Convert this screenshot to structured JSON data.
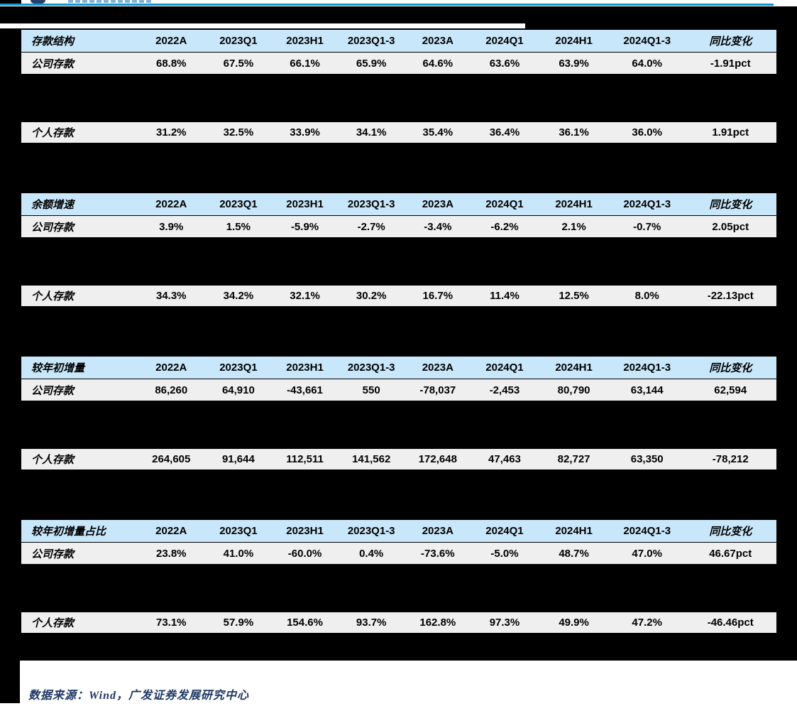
{
  "page": {
    "header": {
      "logo_name": "gf-securities-logo-fragment",
      "accent_rule_color": "#1493D1",
      "top_bar_color": "#000000"
    },
    "columns": [
      "2022A",
      "2023Q1",
      "2023H1",
      "2023Q1-3",
      "2023A",
      "2024Q1",
      "2024H1",
      "2024Q1-3",
      "同比变化"
    ],
    "tables": [
      {
        "title": "存款结构",
        "rows": [
          {
            "label": "公司存款",
            "values": [
              "68.8%",
              "67.5%",
              "66.1%",
              "65.9%",
              "64.6%",
              "63.6%",
              "63.9%",
              "64.0%",
              "-1.91pct"
            ]
          },
          {
            "label": "个人存款",
            "values": [
              "31.2%",
              "32.5%",
              "33.9%",
              "34.1%",
              "35.4%",
              "36.4%",
              "36.1%",
              "36.0%",
              "1.91pct"
            ]
          }
        ]
      },
      {
        "title": "余额增速",
        "rows": [
          {
            "label": "公司存款",
            "values": [
              "3.9%",
              "1.5%",
              "-5.9%",
              "-2.7%",
              "-3.4%",
              "-6.2%",
              "2.1%",
              "-0.7%",
              "2.05pct"
            ]
          },
          {
            "label": "个人存款",
            "values": [
              "34.3%",
              "34.2%",
              "32.1%",
              "30.2%",
              "16.7%",
              "11.4%",
              "12.5%",
              "8.0%",
              "-22.13pct"
            ]
          }
        ]
      },
      {
        "title": "较年初增量",
        "rows": [
          {
            "label": "公司存款",
            "values": [
              "86,260",
              "64,910",
              "-43,661",
              "550",
              "-78,037",
              "-2,453",
              "80,790",
              "63,144",
              "62,594"
            ]
          },
          {
            "label": "个人存款",
            "values": [
              "264,605",
              "91,644",
              "112,511",
              "141,562",
              "172,648",
              "47,463",
              "82,727",
              "63,350",
              "-78,212"
            ]
          }
        ]
      },
      {
        "title": "较年初增量占比",
        "rows": [
          {
            "label": "公司存款",
            "values": [
              "23.8%",
              "41.0%",
              "-60.0%",
              "0.4%",
              "-73.6%",
              "-5.0%",
              "48.7%",
              "47.0%",
              "46.67pct"
            ]
          },
          {
            "label": "个人存款",
            "values": [
              "73.1%",
              "57.9%",
              "154.6%",
              "93.7%",
              "162.8%",
              "97.3%",
              "49.9%",
              "47.2%",
              "-46.46pct"
            ]
          }
        ]
      }
    ],
    "footer": {
      "source_text": "数据来源：Wind，广发证券发展研究中心"
    },
    "colors": {
      "table_header_bg": "#C9E7FA",
      "table_row_bg": "#EFEFEF",
      "table_border": "#000000",
      "footer_text": "#1F3864"
    }
  }
}
